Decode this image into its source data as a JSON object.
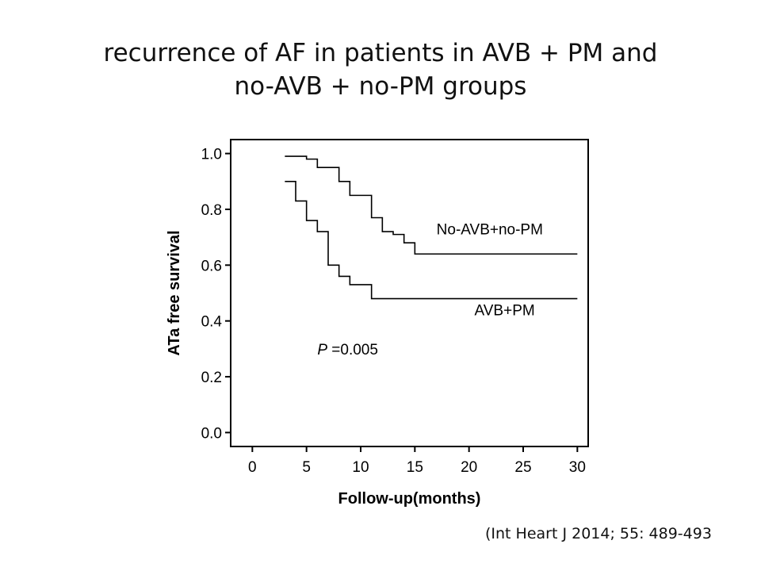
{
  "title": {
    "line1": "recurrence of AF in patients in AVB + PM and",
    "line2": "no-AVB + no-PM groups"
  },
  "citation": "(Int Heart J 2014; 55: 489-493",
  "chart_data": {
    "type": "line",
    "step": true,
    "xlabel": "Follow-up(months)",
    "ylabel": "ATa free survival",
    "xlim": [
      -2,
      31
    ],
    "ylim": [
      -0.05,
      1.05
    ],
    "xticks": [
      0,
      5,
      10,
      15,
      20,
      25,
      30
    ],
    "xtick_labels": [
      "0",
      "5",
      "10",
      "15",
      "20",
      "25",
      "30"
    ],
    "yticks": [
      0.0,
      0.2,
      0.4,
      0.6,
      0.8,
      1.0
    ],
    "ytick_labels": [
      "0.0",
      "0.2",
      "0.4",
      "0.6",
      "0.8",
      "1.0"
    ],
    "grid": false,
    "annotation": {
      "prefix": "P",
      "text": " =0.005",
      "x": 6.0,
      "y": 0.28
    },
    "series": [
      {
        "name": "No-AVB+no-PM",
        "color": "#000000",
        "label_at": {
          "x": 17.0,
          "y": 0.71
        },
        "points": [
          [
            3.0,
            0.99
          ],
          [
            5.0,
            0.98
          ],
          [
            6.0,
            0.95
          ],
          [
            8.0,
            0.9
          ],
          [
            9.0,
            0.85
          ],
          [
            11.0,
            0.77
          ],
          [
            12.0,
            0.72
          ],
          [
            13.0,
            0.71
          ],
          [
            14.0,
            0.68
          ],
          [
            15.0,
            0.64
          ],
          [
            30.0,
            0.64
          ]
        ]
      },
      {
        "name": "AVB+PM",
        "color": "#000000",
        "label_at": {
          "x": 20.5,
          "y": 0.42
        },
        "points": [
          [
            3.0,
            0.9
          ],
          [
            4.0,
            0.83
          ],
          [
            5.0,
            0.76
          ],
          [
            6.0,
            0.72
          ],
          [
            7.0,
            0.6
          ],
          [
            8.0,
            0.56
          ],
          [
            9.0,
            0.53
          ],
          [
            11.0,
            0.48
          ],
          [
            30.0,
            0.48
          ]
        ]
      }
    ]
  }
}
